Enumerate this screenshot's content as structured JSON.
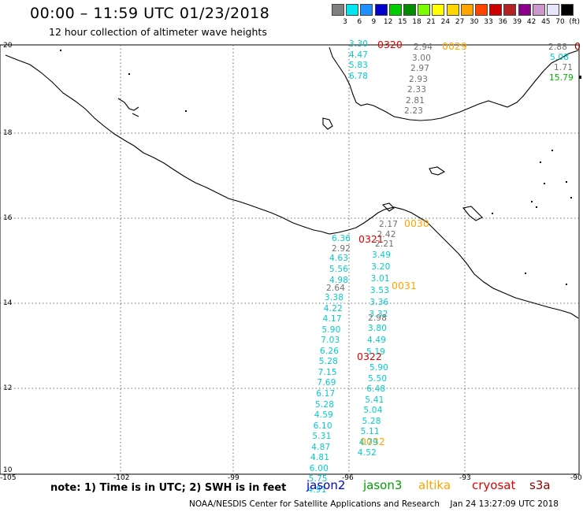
{
  "header": {
    "title": "00:00 – 11:59 UTC 01/23/2018",
    "subtitle": "12 hour collection of altimeter wave heights"
  },
  "color_scale": {
    "labels": [
      "3",
      "6",
      "9",
      "12",
      "15",
      "18",
      "21",
      "24",
      "27",
      "30",
      "33",
      "36",
      "39",
      "42",
      "45",
      "70",
      "(ft)"
    ],
    "colors": [
      "#808080",
      "#00e5ee",
      "#1e90ff",
      "#0000cd",
      "#00cd00",
      "#008b00",
      "#7cfc00",
      "#ffff00",
      "#ffd700",
      "#ffa500",
      "#ff4500",
      "#cd0000",
      "#b22222",
      "#8b008b",
      "#cd96cd",
      "#e6e6fa",
      "#000000"
    ]
  },
  "axes": {
    "lat_labels": [
      "20",
      "18",
      "16",
      "14",
      "12",
      "10"
    ],
    "lon_labels": [
      "-105",
      "-102",
      "-99",
      "-96",
      "-93",
      "-90"
    ]
  },
  "passes": [
    {
      "label": "0320",
      "color": "#e00000"
    },
    {
      "label": "0029",
      "color": "#ffa500"
    },
    {
      "label": "0",
      "color": "#8b0000"
    },
    {
      "label": "0030",
      "color": "#ffa500"
    },
    {
      "label": "0321",
      "color": "#e00000"
    },
    {
      "label": "0031",
      "color": "#ffa500"
    },
    {
      "label": "0322",
      "color": "#e00000"
    },
    {
      "label": "0032",
      "color": "#ffa500"
    }
  ],
  "wave_groups": [
    {
      "color": "#00cdcd",
      "values": [
        "3.30",
        "4.47",
        "5.83",
        "6.78"
      ]
    },
    {
      "color": "#707070",
      "values": [
        "2.94",
        "3.00",
        "2.97",
        "2.93",
        "2.33",
        "2.81",
        "2.23"
      ]
    },
    {
      "color": "#707070",
      "values": [
        "2.88"
      ]
    },
    {
      "color": "#00cdcd",
      "values": [
        "5.08"
      ]
    },
    {
      "color": "#707070",
      "values": [
        "1.71"
      ]
    },
    {
      "color": "#00b000",
      "values": [
        "15.79"
      ]
    },
    {
      "color": "#707070",
      "values": [
        "2.17",
        "2.42",
        "2.21"
      ]
    },
    {
      "color": "#00cdcd",
      "values": [
        "3.49",
        "3.20",
        "3.01",
        "3.53",
        "3.36",
        "3.32"
      ]
    },
    {
      "color": "#707070",
      "values": [
        "2.98"
      ]
    },
    {
      "color": "#00cdcd",
      "values": [
        "3.80",
        "4.49",
        "5.19"
      ]
    },
    {
      "color": "#00cdcd",
      "values": [
        "5.90",
        "5.50",
        "6.48",
        "5.41",
        "5.04",
        "5.28",
        "5.11",
        "4.79",
        "4.52"
      ]
    },
    {
      "color": "#00cdcd",
      "values": [
        "6.36"
      ]
    },
    {
      "color": "#707070",
      "values": [
        "2.92"
      ]
    },
    {
      "color": "#00cdcd",
      "values": [
        "4.63",
        "5.56",
        "4.98"
      ]
    },
    {
      "color": "#707070",
      "values": [
        "2.64"
      ]
    },
    {
      "color": "#00cdcd",
      "values": [
        "3.38",
        "4.22",
        "4.17",
        "5.90",
        "7.03",
        "6.26",
        "5.28",
        "7.15",
        "7.69",
        "6.17",
        "5.28",
        "4.59",
        "6.10",
        "5.31",
        "4.87",
        "4.81",
        "6.00",
        "5.75",
        "4.91"
      ]
    }
  ],
  "footer": {
    "note": "note: 1) Time is in UTC; 2) SWH is in feet",
    "legend": [
      {
        "label": "jason2",
        "color": "#0000cd"
      },
      {
        "label": "jason3",
        "color": "#00a000"
      },
      {
        "label": "altika",
        "color": "#ffa500"
      },
      {
        "label": "cryosat",
        "color": "#e00000"
      },
      {
        "label": "s3a",
        "color": "#8b0000"
      }
    ],
    "credit": "NOAA/NESDIS Center for Satellite Applications and Research",
    "timestamp": "Jan 24 13:27:09 UTC 2018"
  }
}
